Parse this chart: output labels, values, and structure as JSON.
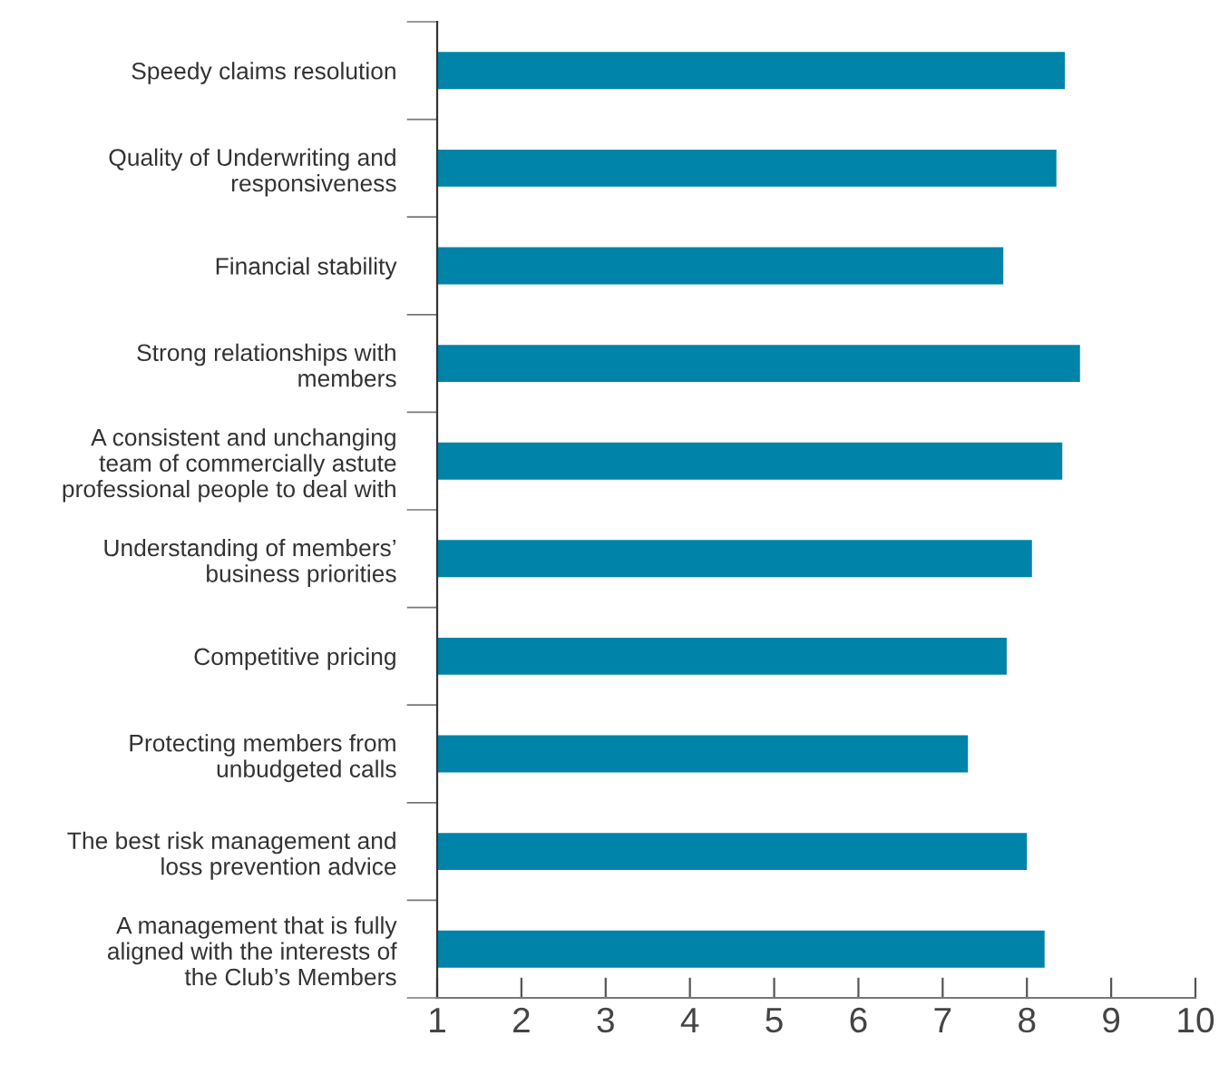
{
  "chart_data": {
    "type": "bar",
    "orientation": "horizontal",
    "categories": [
      "Speedy claims resolution",
      "Quality of Underwriting and\nresponsiveness",
      "Financial stability",
      "Strong relationships with\nmembers",
      "A consistent and unchanging\nteam of commercially astute\nprofessional people to deal with",
      "Understanding of members’\nbusiness priorities",
      "Competitive pricing",
      "Protecting members from\nunbudgeted calls",
      "The best risk management and\nloss prevention advice",
      "A management that is fully\naligned with the interests of\nthe Club’s Members"
    ],
    "values": [
      8.45,
      8.35,
      7.72,
      8.63,
      8.42,
      8.06,
      7.76,
      7.3,
      8.0,
      8.21
    ],
    "color": "#0083a9",
    "xlim": [
      1,
      10
    ],
    "xticks": [
      1,
      2,
      3,
      4,
      5,
      6,
      7,
      8,
      9,
      10
    ],
    "grid": false,
    "legend": false
  }
}
